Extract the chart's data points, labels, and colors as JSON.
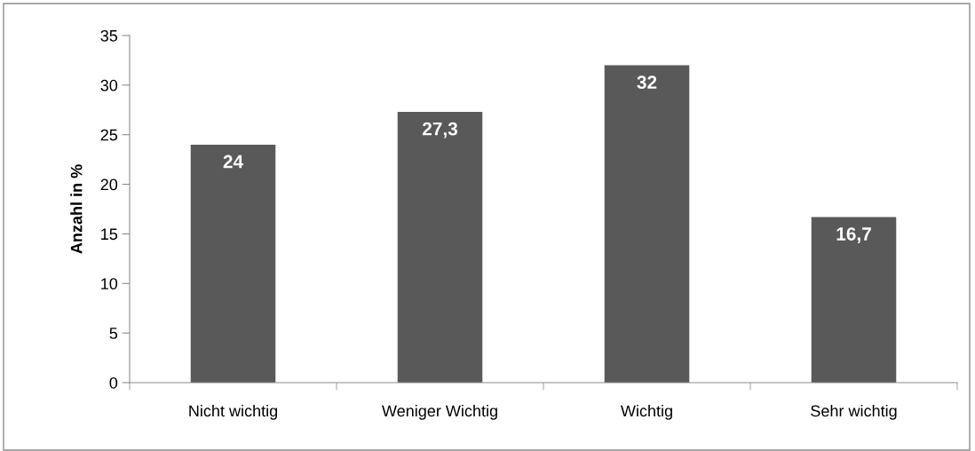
{
  "chart_data": {
    "type": "bar",
    "ylabel": "Anzahl in %",
    "categories": [
      "Nicht wichtig",
      "Weniger Wichtig",
      "Wichtig",
      "Sehr wichtig"
    ],
    "values": [
      24,
      27.3,
      32,
      16.7
    ],
    "color": "#595959",
    "value_labels": [
      "24",
      "27,3",
      "32",
      "16,7"
    ],
    "ylim": [
      0,
      35
    ],
    "yticks": [
      0,
      5,
      10,
      15,
      20,
      25,
      30,
      35
    ],
    "grid": false,
    "legend": false
  }
}
